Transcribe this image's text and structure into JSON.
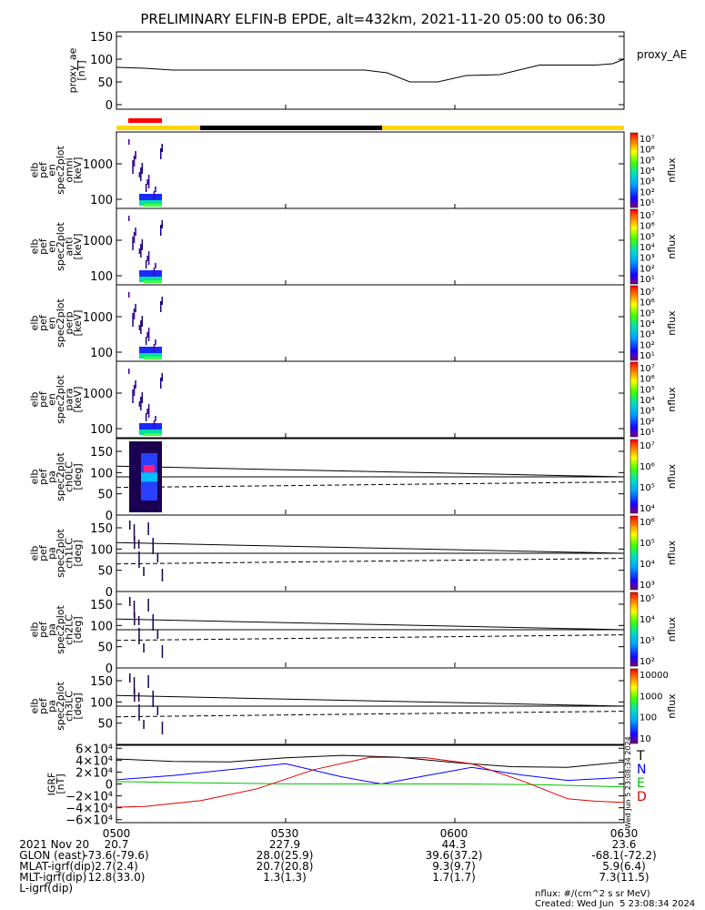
{
  "chart_data": {
    "type": "line",
    "title": "PRELIMINARY ELFIN-B EPDE, alt=432km, 2021-11-20 05:00 to 06:30",
    "time_range": [
      "2021-11-20 05:00",
      "2021-11-20 06:30"
    ],
    "x_ticks": [
      "0500",
      "0530",
      "0600",
      "0630"
    ],
    "panels": [
      {
        "id": "proxy_ae",
        "ylabel": [
          "proxy_ae",
          "[nT]"
        ],
        "legend": "proxy_AE",
        "ylim": [
          -10,
          160
        ],
        "yticks": [
          "150",
          "100",
          "50",
          "0"
        ],
        "series": [
          {
            "x_min": [
              0,
              5,
              10,
              30,
              44,
              48,
              52,
              57,
              62,
              68,
              75,
              85,
              88,
              90
            ],
            "values": [
              82,
              80,
              76,
              76,
              76,
              70,
              50,
              50,
              64,
              66,
              87,
              87,
              90,
              100
            ]
          }
        ]
      },
      {
        "id": "en_spec_omni",
        "ylabel": [
          "elb",
          "pef",
          "en",
          "spec2plot",
          "omni",
          "[keV]"
        ],
        "yticks": [
          "1000",
          "100"
        ],
        "colorbar": {
          "label": "nflux",
          "ticks": [
            "10⁷",
            "10⁶",
            "10⁵",
            "10⁴",
            "10³",
            "10²",
            "10¹"
          ]
        }
      },
      {
        "id": "en_spec_anti",
        "ylabel": [
          "elb",
          "pef",
          "en",
          "spec2plot",
          "anti",
          "[keV]"
        ],
        "yticks": [
          "1000",
          "100"
        ],
        "colorbar": {
          "label": "nflux",
          "ticks": [
            "10⁷",
            "10⁶",
            "10⁵",
            "10⁴",
            "10³",
            "10²",
            "10¹"
          ]
        }
      },
      {
        "id": "en_spec_perp",
        "ylabel": [
          "elb",
          "pef",
          "en",
          "spec2plot",
          "perp",
          "[keV]"
        ],
        "yticks": [
          "1000",
          "100"
        ],
        "colorbar": {
          "label": "nflux",
          "ticks": [
            "10⁷",
            "10⁶",
            "10⁵",
            "10⁴",
            "10³",
            "10²",
            "10¹"
          ]
        }
      },
      {
        "id": "en_spec_para",
        "ylabel": [
          "elb",
          "pef",
          "en",
          "spec2plot",
          "para",
          "[keV]"
        ],
        "yticks": [
          "1000",
          "100"
        ],
        "colorbar": {
          "label": "nflux",
          "ticks": [
            "10⁷",
            "10⁶",
            "10⁵",
            "10⁴",
            "10³",
            "10²",
            "10¹"
          ]
        }
      },
      {
        "id": "pa_ch0",
        "ylabel": [
          "elb",
          "pef",
          "pa",
          "spec2plot",
          "ch0LC",
          "[deg]"
        ],
        "yticks": [
          "150",
          "100",
          "50",
          "0"
        ],
        "colorbar": {
          "label": "nflux",
          "ticks": [
            "10⁷",
            "10⁶",
            "10⁵",
            "10⁴"
          ]
        }
      },
      {
        "id": "pa_ch1",
        "ylabel": [
          "elb",
          "pef",
          "pa",
          "spec2plot",
          "ch1LC",
          "[deg]"
        ],
        "yticks": [
          "150",
          "100",
          "50",
          "0"
        ],
        "colorbar": {
          "label": "nflux",
          "ticks": [
            "10⁶",
            "10⁵",
            "10⁴",
            "10³"
          ]
        }
      },
      {
        "id": "pa_ch2",
        "ylabel": [
          "elb",
          "pef",
          "pa",
          "spec2plot",
          "ch2LC",
          "[deg]"
        ],
        "yticks": [
          "150",
          "100",
          "50",
          "0"
        ],
        "colorbar": {
          "label": "nflux",
          "ticks": [
            "10⁵",
            "10⁴",
            "10³",
            "10²"
          ]
        }
      },
      {
        "id": "pa_ch3",
        "ylabel": [
          "elb",
          "pef",
          "pa",
          "spec2plot",
          "ch3LC",
          "[deg]"
        ],
        "yticks": [
          "150",
          "100",
          "50"
        ],
        "colorbar": {
          "label": "nflux",
          "ticks": [
            "10000",
            "1000",
            "100",
            "10"
          ]
        }
      },
      {
        "id": "igrf",
        "ylabel": [
          "IGRF",
          "[nT]"
        ],
        "ylim": [
          -65000,
          65000
        ],
        "yticks": [
          "6×10⁴",
          "4×10⁴",
          "2×10⁴",
          "0",
          "−2×10⁴",
          "−4×10⁴",
          "−6×10⁴"
        ],
        "legend": [
          "T",
          "N",
          "E",
          "D"
        ],
        "colors": {
          "T": "#000000",
          "N": "#0000ff",
          "E": "#00c000",
          "D": "#dd0000"
        },
        "series": [
          {
            "name": "T",
            "x_min": [
              0,
              10,
              20,
              30,
              40,
              50,
              60,
              70,
              80,
              90
            ],
            "values": [
              42000,
              38000,
              37000,
              44000,
              48000,
              45000,
              36000,
              29000,
              28000,
              37000
            ]
          },
          {
            "name": "N",
            "x_min": [
              0,
              10,
              20,
              30,
              40,
              47,
              55,
              63,
              72,
              80,
              90
            ],
            "values": [
              7000,
              14000,
              24000,
              34000,
              12000,
              0,
              14000,
              28000,
              15000,
              6000,
              11000
            ]
          },
          {
            "name": "E",
            "x_min": [
              0,
              15,
              30,
              45,
              60,
              75,
              90
            ],
            "values": [
              4000,
              2000,
              200,
              0,
              0,
              -1000,
              -5000
            ]
          },
          {
            "name": "D",
            "x_min": [
              0,
              5,
              15,
              25,
              35,
              45,
              55,
              63,
              72,
              80,
              85,
              90
            ],
            "values": [
              -39000,
              -38000,
              -28000,
              -8000,
              24000,
              45000,
              44000,
              34000,
              5000,
              -25000,
              -29000,
              -31000
            ]
          }
        ]
      }
    ],
    "pa_lines": [
      {
        "style": "solid",
        "values_deg": [
          115,
          90
        ]
      },
      {
        "style": "solid",
        "values_deg": [
          90,
          90
        ]
      },
      {
        "style": "dashed",
        "values_deg": [
          65,
          78
        ]
      }
    ]
  },
  "proxy_legend": "proxy_AE",
  "igrf_legend": [
    "T",
    "N",
    "E",
    "D"
  ],
  "side_stamp": "Wed Jun  5 23:08:34 2024",
  "footer": {
    "rows": [
      {
        "label": "2021 Nov 20",
        "values": [
          "0500",
          "0530",
          "0600",
          "0630"
        ]
      },
      {
        "label": "GLON (east)",
        "values": [
          "20.7",
          "227.9",
          "44.3",
          "23.6"
        ]
      },
      {
        "label": "MLAT-igrf(dip)",
        "values": [
          "-73.6(-79.6)",
          "28.0(25.9)",
          "39.6(37.2)",
          "-68.1(-72.2)"
        ]
      },
      {
        "label": "MLT-igrf(dip)",
        "values": [
          "2.7(2.4)",
          "20.7(20.8)",
          "9.3(9.7)",
          "5.9(6.4)"
        ]
      },
      {
        "label": "L-igrf(dip)",
        "values": [
          "12.8(33.0)",
          "1.3(1.3)",
          "1.7(1.7)",
          "7.3(11.5)"
        ]
      }
    ],
    "units": "nflux: #/(cm^2 s sr MeV)",
    "created": "Created: Wed Jun  5 23:08:34 2024"
  }
}
